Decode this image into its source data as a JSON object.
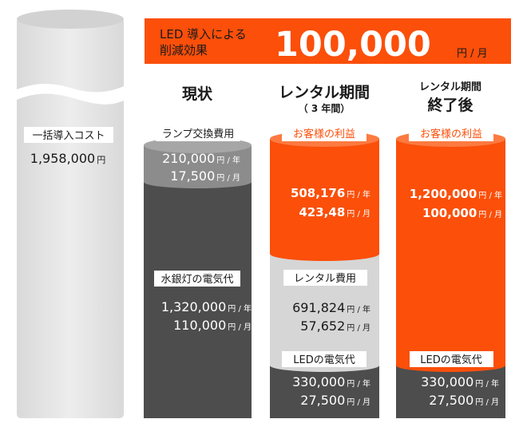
{
  "colors": {
    "orange": "#fb4f0a",
    "dark": "#4d4d4d",
    "mid_gray": "#8c8c8c",
    "light_gray": "#d6d6d6",
    "pale_gray": "#e4e4e4",
    "label_bg": "#ffffff"
  },
  "banner": {
    "line1": "LED 導入による",
    "line2": "削減効果",
    "amount": "100,000",
    "unit": "円 / 月"
  },
  "chart_data": {
    "type": "bar",
    "columns": [
      {
        "key": "initial",
        "header": "",
        "segments": [
          {
            "label": "一括導入コスト",
            "value1": "1,958,000",
            "unit1": "円",
            "value2": "",
            "unit2": ""
          }
        ]
      },
      {
        "key": "current",
        "header": "現状",
        "segments": [
          {
            "label": "ランプ交換費用",
            "value1": "210,000",
            "unit1": "円 / 年",
            "value2": "17,500",
            "unit2": "円 / 月"
          },
          {
            "label": "水銀灯の電気代",
            "value1": "1,320,000",
            "unit1": "円 / 年",
            "value2": "110,000",
            "unit2": "円 / 月"
          }
        ]
      },
      {
        "key": "rental",
        "header": "レンタル期間",
        "subheader": "（ 3 年間）",
        "segments": [
          {
            "label": "お客様の利益",
            "value1": "508,176",
            "unit1": "円 / 年",
            "value2": "423,48",
            "unit2": "円 / 月"
          },
          {
            "label": "レンタル費用",
            "value1": "691,824",
            "unit1": "円 / 年",
            "value2": "57,652",
            "unit2": "円 / 月"
          },
          {
            "label": "LEDの電気代",
            "value1": "330,000",
            "unit1": "円 / 年",
            "value2": "27,500",
            "unit2": "円 / 月"
          }
        ]
      },
      {
        "key": "after",
        "header_small": "レンタル期間",
        "header": "終了後",
        "segments": [
          {
            "label": "お客様の利益",
            "value1": "1,200,000",
            "unit1": "円 / 年",
            "value2": "100,000",
            "unit2": "円 / 月"
          },
          {
            "label": "LEDの電気代",
            "value1": "330,000",
            "unit1": "円 / 年",
            "value2": "27,500",
            "unit2": "円 / 月"
          }
        ]
      }
    ]
  }
}
